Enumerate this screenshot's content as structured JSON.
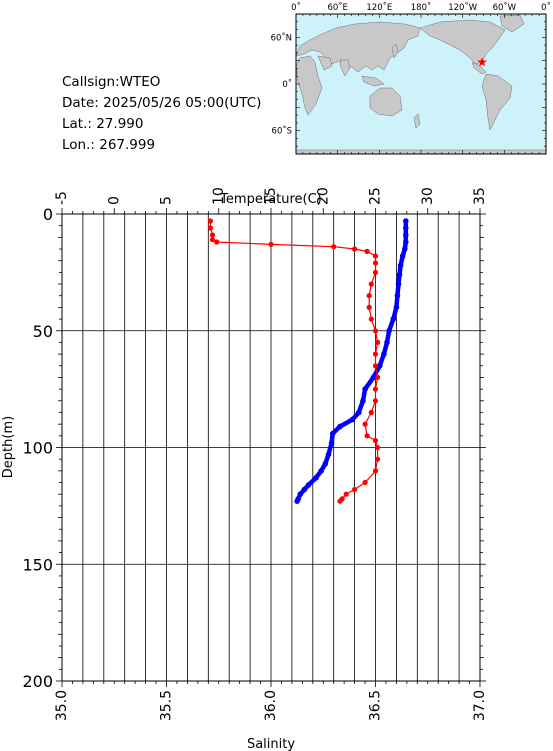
{
  "info": {
    "callsign": "Callsign:WTEO",
    "date": "Date:  2025/05/26 05:00(UTC)",
    "lat": "Lat.:   27.990",
    "lon": "Lon.:  267.999"
  },
  "map": {
    "lon_labels": [
      "0˚",
      "60˚E",
      "120˚E",
      "180˚",
      "120˚W",
      "60˚W",
      "0˚"
    ],
    "lat_labels": [
      "60˚N",
      "0˚",
      "60˚S"
    ],
    "ocean_color": "#cdf2fa",
    "land_color": "#c8c8c8",
    "marker": {
      "lon": 267.999,
      "lat": 27.99,
      "color": "#ff0000",
      "symbol": "star"
    }
  },
  "chart_data": {
    "type": "scatter",
    "top_axis": {
      "label": "Temperature(C)",
      "range": [
        -5,
        35
      ],
      "ticks": [
        "-5",
        "0",
        "5",
        "10",
        "15",
        "20",
        "25",
        "30",
        "35"
      ]
    },
    "bottom_axis": {
      "label": "Salinity",
      "range": [
        35.0,
        37.0
      ],
      "ticks": [
        "35.0",
        "35.5",
        "36.0",
        "36.5",
        "37.0"
      ]
    },
    "y_axis": {
      "label": "Depth(m)",
      "range": [
        0,
        200
      ],
      "inverted": true,
      "ticks": [
        "0",
        "50",
        "100",
        "150",
        "200"
      ]
    },
    "grid": true,
    "series": [
      {
        "quantity": "temperature",
        "color": "#0000ff",
        "points": [
          [
            27.9,
            3
          ],
          [
            27.9,
            6
          ],
          [
            27.9,
            9
          ],
          [
            27.9,
            12
          ],
          [
            27.8,
            15
          ],
          [
            27.6,
            18
          ],
          [
            27.4,
            22
          ],
          [
            27.3,
            26
          ],
          [
            27.2,
            30
          ],
          [
            27.1,
            35
          ],
          [
            27.0,
            40
          ],
          [
            26.7,
            45
          ],
          [
            26.3,
            50
          ],
          [
            26.1,
            55
          ],
          [
            25.8,
            60
          ],
          [
            25.4,
            65
          ],
          [
            24.8,
            70
          ],
          [
            24.0,
            75
          ],
          [
            23.8,
            80
          ],
          [
            23.4,
            85
          ],
          [
            22.8,
            88
          ],
          [
            21.6,
            91
          ],
          [
            20.9,
            94
          ],
          [
            20.8,
            98
          ],
          [
            20.5,
            103
          ],
          [
            20.2,
            107
          ],
          [
            19.8,
            110
          ],
          [
            19.3,
            113
          ],
          [
            18.6,
            116
          ],
          [
            18.2,
            118
          ],
          [
            17.8,
            120
          ],
          [
            17.6,
            122
          ],
          [
            17.5,
            123
          ]
        ]
      },
      {
        "quantity": "salinity",
        "color": "#ff0000",
        "points": [
          [
            35.71,
            3
          ],
          [
            35.71,
            6
          ],
          [
            35.72,
            9
          ],
          [
            35.72,
            11
          ],
          [
            35.74,
            12
          ],
          [
            36.0,
            13
          ],
          [
            36.3,
            14
          ],
          [
            36.4,
            15
          ],
          [
            36.46,
            16
          ],
          [
            36.5,
            18
          ],
          [
            36.5,
            21
          ],
          [
            36.5,
            25
          ],
          [
            36.48,
            30
          ],
          [
            36.47,
            35
          ],
          [
            36.47,
            40
          ],
          [
            36.48,
            45
          ],
          [
            36.5,
            50
          ],
          [
            36.51,
            55
          ],
          [
            36.5,
            60
          ],
          [
            36.5,
            65
          ],
          [
            36.51,
            70
          ],
          [
            36.5,
            75
          ],
          [
            36.5,
            80
          ],
          [
            36.48,
            85
          ],
          [
            36.45,
            90
          ],
          [
            36.46,
            95
          ],
          [
            36.5,
            97
          ],
          [
            36.51,
            100
          ],
          [
            36.51,
            105
          ],
          [
            36.5,
            110
          ],
          [
            36.45,
            115
          ],
          [
            36.4,
            118
          ],
          [
            36.36,
            120
          ],
          [
            36.34,
            122
          ],
          [
            36.33,
            123
          ]
        ]
      }
    ]
  }
}
